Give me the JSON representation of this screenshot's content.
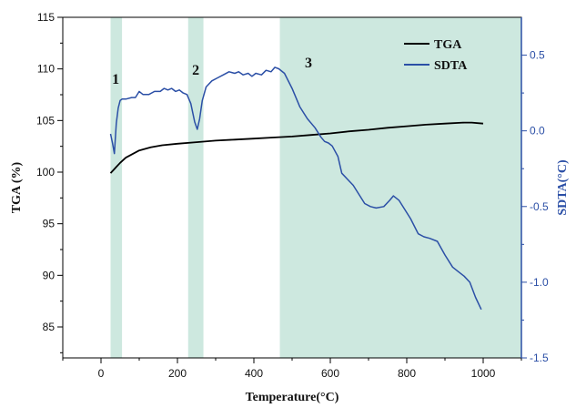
{
  "chart_data": {
    "type": "line",
    "xlabel": "Temperature(°C)",
    "ylabel": "TGA (%)",
    "y2label": "SDTA(°C)",
    "xlim": [
      -100,
      1100
    ],
    "ylim": [
      82,
      115
    ],
    "y2lim": [
      -1.5,
      0.75
    ],
    "x_ticks": [
      0,
      200,
      400,
      600,
      800,
      1000
    ],
    "y_ticks": [
      85,
      90,
      95,
      100,
      105,
      110,
      115
    ],
    "y2_ticks": [
      -1.5,
      -1.0,
      -0.5,
      0.0,
      0.5
    ],
    "y2_tick_labels": [
      "-1.5",
      "-1.0",
      "-0.5",
      "0.0",
      "0.5"
    ],
    "legend_position": "top-right",
    "colors": {
      "TGA": "#000000",
      "SDTA": "#2b4fa6",
      "region": "#cde8df"
    },
    "regions": [
      {
        "label": "1",
        "x_start": 25,
        "x_end": 55
      },
      {
        "label": "2",
        "x_start": 228,
        "x_end": 268
      },
      {
        "label": "3",
        "x_start": 468,
        "x_end": 1100
      }
    ],
    "series": [
      {
        "name": "TGA",
        "axis": "left",
        "x": [
          25,
          35,
          50,
          65,
          80,
          100,
          130,
          160,
          200,
          250,
          300,
          350,
          400,
          450,
          500,
          550,
          600,
          650,
          700,
          750,
          800,
          850,
          900,
          950,
          970,
          1000
        ],
        "y": [
          99.9,
          100.3,
          100.9,
          101.4,
          101.7,
          102.1,
          102.4,
          102.6,
          102.75,
          102.9,
          103.05,
          103.15,
          103.25,
          103.35,
          103.45,
          103.6,
          103.75,
          103.95,
          104.1,
          104.3,
          104.45,
          104.6,
          104.7,
          104.8,
          104.8,
          104.7
        ]
      },
      {
        "name": "SDTA",
        "axis": "right",
        "x": [
          25,
          30,
          35,
          40,
          45,
          50,
          55,
          65,
          80,
          90,
          100,
          110,
          125,
          140,
          155,
          165,
          175,
          185,
          195,
          205,
          215,
          225,
          235,
          245,
          252,
          258,
          265,
          275,
          290,
          305,
          320,
          335,
          350,
          360,
          372,
          385,
          395,
          405,
          420,
          432,
          445,
          455,
          465,
          480,
          500,
          520,
          540,
          560,
          575,
          585,
          595,
          605,
          620,
          630,
          645,
          660,
          675,
          690,
          705,
          720,
          740,
          755,
          765,
          780,
          795,
          810,
          830,
          845,
          860,
          880,
          900,
          920,
          935,
          950,
          965,
          980,
          995
        ],
        "y": [
          -0.02,
          -0.08,
          -0.15,
          0.05,
          0.15,
          0.2,
          0.21,
          0.21,
          0.22,
          0.22,
          0.26,
          0.24,
          0.24,
          0.26,
          0.26,
          0.28,
          0.27,
          0.28,
          0.26,
          0.27,
          0.25,
          0.24,
          0.18,
          0.06,
          0.01,
          0.08,
          0.2,
          0.29,
          0.33,
          0.35,
          0.37,
          0.39,
          0.38,
          0.39,
          0.37,
          0.38,
          0.36,
          0.38,
          0.37,
          0.4,
          0.39,
          0.42,
          0.41,
          0.38,
          0.28,
          0.16,
          0.08,
          0.02,
          -0.04,
          -0.07,
          -0.08,
          -0.1,
          -0.17,
          -0.28,
          -0.32,
          -0.36,
          -0.42,
          -0.48,
          -0.5,
          -0.51,
          -0.5,
          -0.46,
          -0.43,
          -0.46,
          -0.52,
          -0.58,
          -0.68,
          -0.7,
          -0.71,
          -0.73,
          -0.82,
          -0.9,
          -0.93,
          -0.96,
          -1.0,
          -1.1,
          -1.18
        ]
      }
    ]
  }
}
